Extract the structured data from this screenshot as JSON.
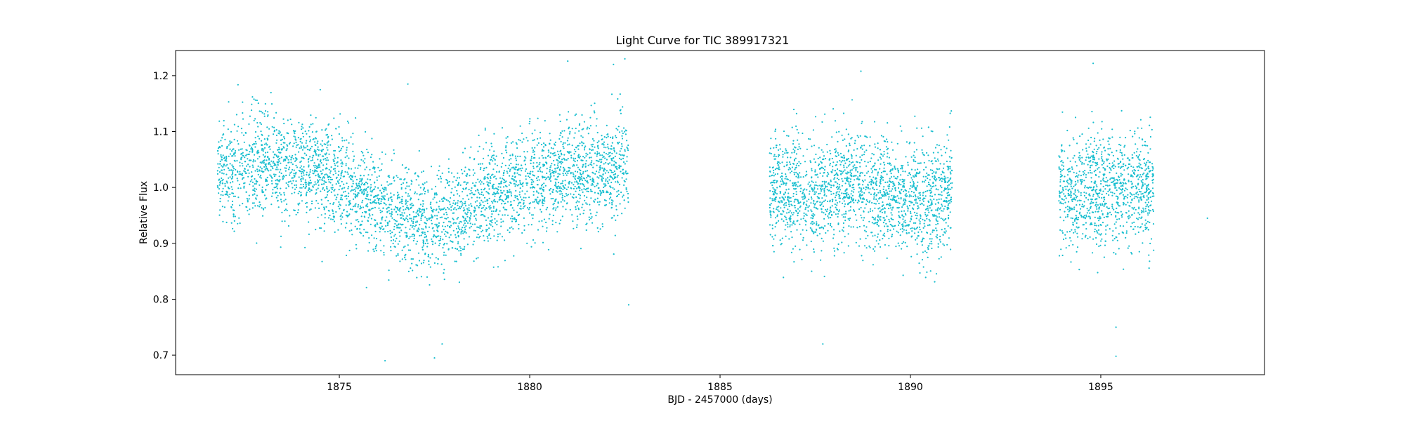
{
  "chart_data": {
    "type": "scatter",
    "title": "Light Curve for TIC 389917321",
    "xlabel": "BJD - 2457000 (days)",
    "ylabel": "Relative Flux",
    "xlim": [
      1870.7,
      1899.3
    ],
    "ylim": [
      0.665,
      1.245
    ],
    "xticks": [
      1875,
      1880,
      1885,
      1890,
      1895
    ],
    "xtick_labels": [
      "1875",
      "1880",
      "1885",
      "1890",
      "1895"
    ],
    "yticks": [
      0.7,
      0.8,
      0.9,
      1.0,
      1.1,
      1.2
    ],
    "ytick_labels": [
      "0.7",
      "0.8",
      "0.9",
      "1.0",
      "1.1",
      "1.2"
    ],
    "grid": false,
    "marker_color": "#17becf",
    "series": [
      {
        "name": "Relative Flux",
        "segments": [
          {
            "x_start": 1871.8,
            "x_end": 1882.6,
            "n_points": 3600,
            "trend_x": [
              1871.8,
              1873.0,
              1874.5,
              1875.5,
              1876.5,
              1877.3,
              1878.2,
              1879.0,
              1880.0,
              1881.0,
              1882.0,
              1882.6
            ],
            "trend_y": [
              1.035,
              1.045,
              1.025,
              0.99,
              0.955,
              0.935,
              0.95,
              0.99,
              1.01,
              1.025,
              1.035,
              1.04
            ],
            "scatter": 0.045
          },
          {
            "x_start": 1886.3,
            "x_end": 1891.1,
            "n_points": 1900,
            "trend_x": [
              1886.3,
              1887.5,
              1888.5,
              1889.5,
              1890.5,
              1891.1
            ],
            "trend_y": [
              1.0,
              0.99,
              1.005,
              0.985,
              0.975,
              0.995
            ],
            "scatter": 0.05
          },
          {
            "x_start": 1893.9,
            "x_end": 1896.4,
            "n_points": 1000,
            "trend_x": [
              1893.9,
              1894.7,
              1895.5,
              1896.4
            ],
            "trend_y": [
              0.985,
              0.99,
              1.0,
              0.995
            ],
            "scatter": 0.05
          }
        ],
        "outliers": [
          {
            "x": 1876.2,
            "y": 0.69
          },
          {
            "x": 1877.5,
            "y": 0.695
          },
          {
            "x": 1877.7,
            "y": 0.72
          },
          {
            "x": 1881.0,
            "y": 1.226
          },
          {
            "x": 1882.5,
            "y": 1.23
          },
          {
            "x": 1882.2,
            "y": 1.22
          },
          {
            "x": 1887.7,
            "y": 0.72
          },
          {
            "x": 1888.7,
            "y": 1.208
          },
          {
            "x": 1894.8,
            "y": 1.222
          },
          {
            "x": 1895.4,
            "y": 0.75
          },
          {
            "x": 1895.4,
            "y": 0.698
          },
          {
            "x": 1897.8,
            "y": 0.945
          },
          {
            "x": 1874.5,
            "y": 1.175
          },
          {
            "x": 1876.8,
            "y": 1.185
          },
          {
            "x": 1882.6,
            "y": 0.79
          }
        ]
      }
    ]
  }
}
